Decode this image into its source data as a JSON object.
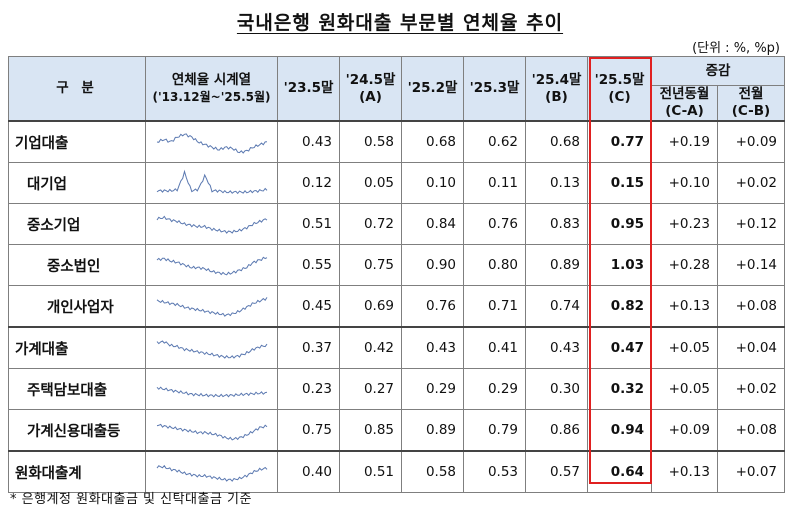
{
  "title": "국내은행 원화대출 부문별 연체율 추이",
  "unit": "(단위 : %, %p)",
  "header": {
    "category": "구   분",
    "series_col": "연체율 시계열",
    "series_sub": "('13.12월~'25.5월)",
    "periods": [
      {
        "label": "'23.5말",
        "sub": ""
      },
      {
        "label": "'24.5말",
        "sub": "(A)"
      },
      {
        "label": "'25.2말",
        "sub": ""
      },
      {
        "label": "'25.3말",
        "sub": ""
      },
      {
        "label": "'25.4말",
        "sub": "(B)"
      },
      {
        "label": "'25.5말",
        "sub": "(C)"
      }
    ],
    "change": "증감",
    "change_yoy": "전년동월",
    "change_yoy_sub": "(C-A)",
    "change_mom": "전월",
    "change_mom_sub": "(C-B)"
  },
  "rows": [
    {
      "name": "기업대출",
      "level": 0,
      "values": [
        "0.43",
        "0.58",
        "0.68",
        "0.62",
        "0.68",
        "0.77"
      ],
      "yoy": "+0.19",
      "mom": "+0.09"
    },
    {
      "name": "대기업",
      "level": 1,
      "values": [
        "0.12",
        "0.05",
        "0.10",
        "0.11",
        "0.13",
        "0.15"
      ],
      "yoy": "+0.10",
      "mom": "+0.02"
    },
    {
      "name": "중소기업",
      "level": 1,
      "values": [
        "0.51",
        "0.72",
        "0.84",
        "0.76",
        "0.83",
        "0.95"
      ],
      "yoy": "+0.23",
      "mom": "+0.12"
    },
    {
      "name": "중소법인",
      "level": 2,
      "values": [
        "0.55",
        "0.75",
        "0.90",
        "0.80",
        "0.89",
        "1.03"
      ],
      "yoy": "+0.28",
      "mom": "+0.14"
    },
    {
      "name": "개인사업자",
      "level": 2,
      "values": [
        "0.45",
        "0.69",
        "0.76",
        "0.71",
        "0.74",
        "0.82"
      ],
      "yoy": "+0.13",
      "mom": "+0.08"
    },
    {
      "name": "가계대출",
      "level": 0,
      "values": [
        "0.37",
        "0.42",
        "0.43",
        "0.41",
        "0.43",
        "0.47"
      ],
      "yoy": "+0.05",
      "mom": "+0.04"
    },
    {
      "name": "주택담보대출",
      "level": 1,
      "values": [
        "0.23",
        "0.27",
        "0.29",
        "0.29",
        "0.30",
        "0.32"
      ],
      "yoy": "+0.05",
      "mom": "+0.02"
    },
    {
      "name": "가계신용대출등",
      "level": 1,
      "values": [
        "0.75",
        "0.85",
        "0.89",
        "0.79",
        "0.86",
        "0.94"
      ],
      "yoy": "+0.09",
      "mom": "+0.08"
    },
    {
      "name": "원화대출계",
      "level": 0,
      "values": [
        "0.40",
        "0.51",
        "0.58",
        "0.53",
        "0.57",
        "0.64"
      ],
      "yoy": "+0.13",
      "mom": "+0.07"
    }
  ],
  "colors": {
    "sparkline": "#5a78b0",
    "header_bg": "#d9e5f3",
    "highlight": "#e02020"
  },
  "footnote": "* 은행계정 원화대출금 및 신탁대출금 기준"
}
